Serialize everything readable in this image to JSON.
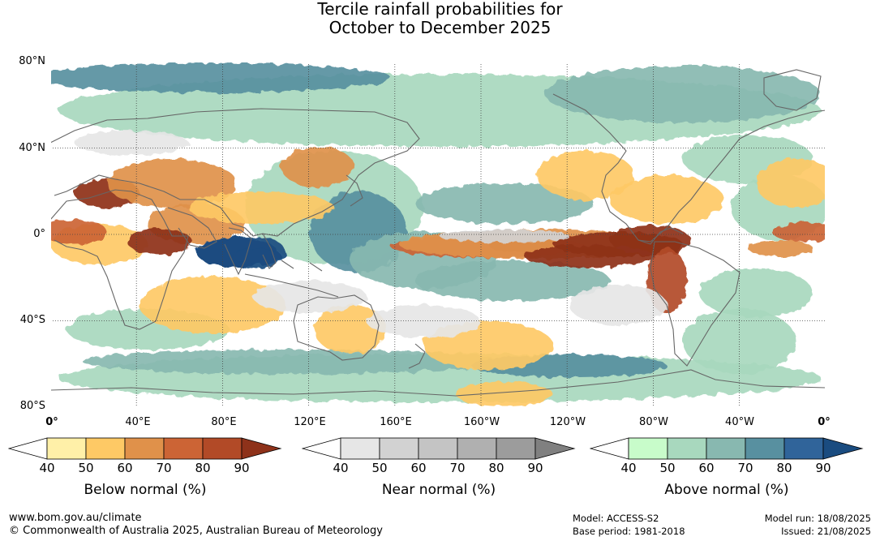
{
  "title": {
    "line1": "Tercile rainfall probabilities for",
    "line2": "October to December 2025"
  },
  "map": {
    "lat_labels": [
      "80°N",
      "40°N",
      "0°",
      "40°S",
      "80°S"
    ],
    "lon_labels": [
      "0°",
      "40°E",
      "80°E",
      "120°E",
      "160°E",
      "160°W",
      "120°W",
      "80°W",
      "40°W",
      "0°"
    ],
    "colors": {
      "below": [
        "#fff0a8",
        "#fec965",
        "#e0914a",
        "#cc6435",
        "#b24a27",
        "#8e321a"
      ],
      "near": [
        "#e6e6e6",
        "#d2d2d2",
        "#c4c4c4",
        "#b0b0b0",
        "#9c9c9c",
        "#808080"
      ],
      "above": [
        "#c8fcca",
        "#a8d8be",
        "#88b8b0",
        "#5890a0",
        "#30649a",
        "#1a4c80"
      ],
      "coastline": "#666666",
      "grid": "#444444"
    }
  },
  "colorbars": [
    {
      "caption": "Below normal (%)",
      "ticks": [
        "40",
        "50",
        "60",
        "70",
        "80",
        "90"
      ]
    },
    {
      "caption": "Near normal (%)",
      "ticks": [
        "40",
        "50",
        "60",
        "70",
        "80",
        "90"
      ]
    },
    {
      "caption": "Above normal (%)",
      "ticks": [
        "40",
        "50",
        "60",
        "70",
        "80",
        "90"
      ]
    }
  ],
  "footer": {
    "website": "www.bom.gov.au/climate",
    "copyright": "© Commonwealth of Australia 2025, Australian Bureau of Meteorology",
    "model": "Model: ACCESS-S2",
    "base_period": "Base period: 1981-2018",
    "model_run": "Model run: 18/08/2025",
    "issued": "Issued: 21/08/2025"
  }
}
